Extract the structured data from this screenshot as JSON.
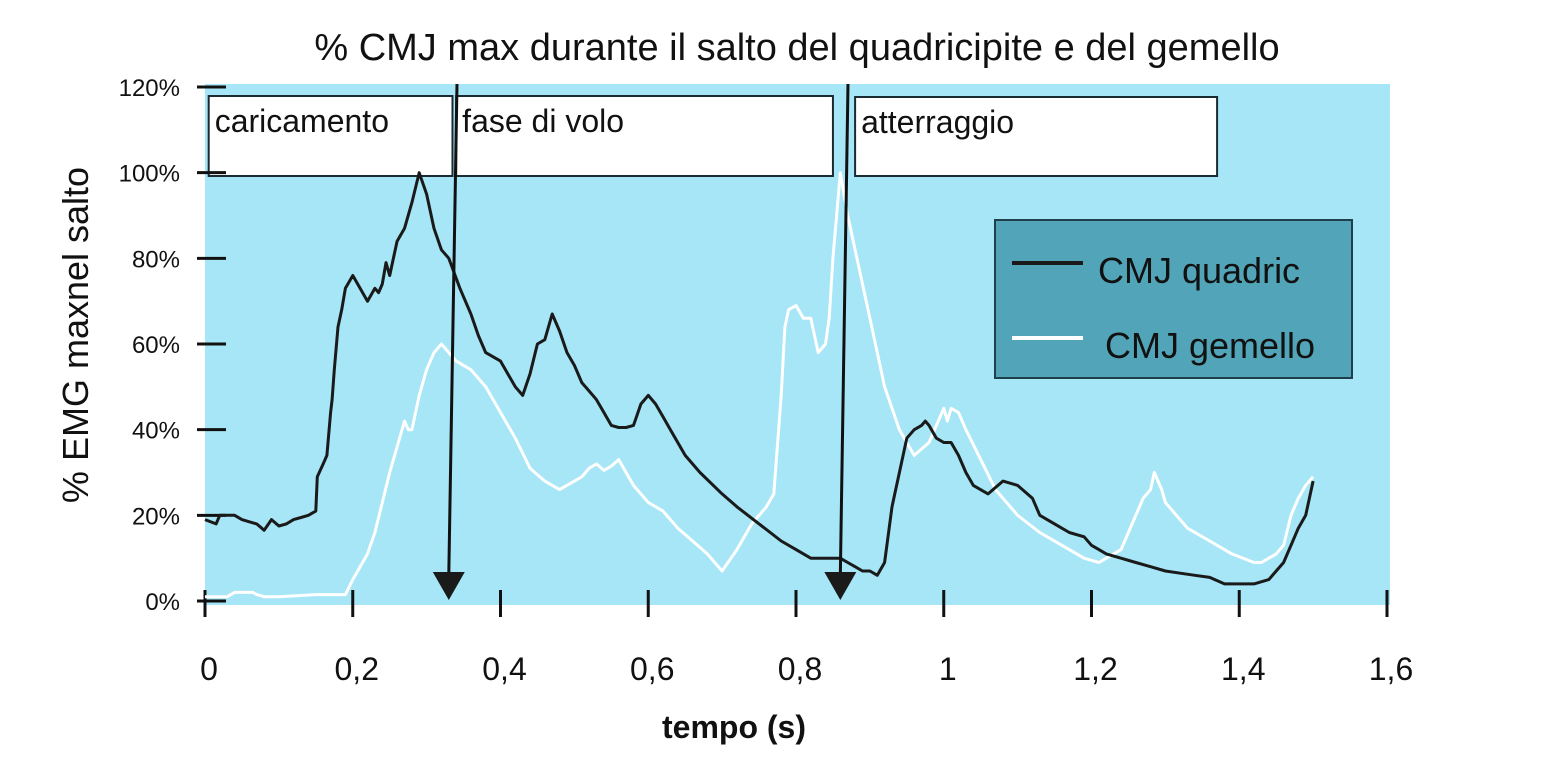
{
  "chart_data": {
    "type": "line",
    "title": "% CMJ max durante il salto del quadricipite e del gemello",
    "xlabel": "tempo (s)",
    "ylabel": "% EMG maxnel salto",
    "xlim": [
      0,
      1.6
    ],
    "ylim": [
      0,
      120
    ],
    "x_ticks": [
      0,
      0.2,
      0.4,
      0.6,
      0.8,
      1.0,
      1.2,
      1.4,
      1.6
    ],
    "x_tick_labels": [
      "0",
      "0,2",
      "0,4",
      "0,6",
      "0,8",
      "1",
      "1,2",
      "1,4",
      "1,6"
    ],
    "y_ticks": [
      0,
      20,
      40,
      60,
      80,
      100,
      120
    ],
    "y_tick_labels": [
      "0%",
      "20%",
      "40%",
      "60%",
      "80%",
      "100%",
      "120%"
    ],
    "grid": false,
    "background_color": "#a6e6f6",
    "legend": {
      "position": "upper right",
      "background_color": "#52a5b8",
      "entries": [
        {
          "label": "CMJ quadric",
          "color": "#1a1a1a"
        },
        {
          "label": "CMJ gemello",
          "color": "#ffffff"
        }
      ]
    },
    "phases": [
      {
        "label": "caricamento",
        "x_start": 0.005,
        "x_end": 0.335
      },
      {
        "label": "fase di volo",
        "x_start": 0.34,
        "x_end": 0.85
      },
      {
        "label": "atterraggio",
        "x_start": 0.88,
        "x_end": 1.37
      }
    ],
    "annotations": [
      {
        "type": "arrow",
        "x": 0.33,
        "label": "phase boundary (take-off)"
      },
      {
        "type": "arrow",
        "x": 0.86,
        "label": "phase boundary (landing)"
      }
    ],
    "series": [
      {
        "name": "CMJ quadric",
        "color": "#1a1a1a",
        "x": [
          0,
          0.015,
          0.02,
          0.04,
          0.05,
          0.06,
          0.07,
          0.08,
          0.09,
          0.1,
          0.11,
          0.12,
          0.13,
          0.14,
          0.15,
          0.152,
          0.16,
          0.165,
          0.17,
          0.172,
          0.175,
          0.18,
          0.185,
          0.19,
          0.2,
          0.21,
          0.22,
          0.23,
          0.235,
          0.24,
          0.245,
          0.25,
          0.255,
          0.26,
          0.27,
          0.28,
          0.29,
          0.3,
          0.31,
          0.32,
          0.33,
          0.345,
          0.36,
          0.37,
          0.38,
          0.4,
          0.41,
          0.42,
          0.43,
          0.44,
          0.45,
          0.46,
          0.47,
          0.48,
          0.49,
          0.5,
          0.51,
          0.52,
          0.53,
          0.54,
          0.55,
          0.56,
          0.57,
          0.58,
          0.59,
          0.6,
          0.61,
          0.62,
          0.63,
          0.65,
          0.67,
          0.7,
          0.72,
          0.75,
          0.78,
          0.8,
          0.82,
          0.84,
          0.86,
          0.87,
          0.88,
          0.89,
          0.9,
          0.91,
          0.92,
          0.93,
          0.935,
          0.94,
          0.95,
          0.96,
          0.97,
          0.975,
          0.98,
          0.99,
          1.0,
          1.01,
          1.02,
          1.03,
          1.04,
          1.06,
          1.08,
          1.1,
          1.12,
          1.13,
          1.15,
          1.17,
          1.19,
          1.2,
          1.21,
          1.22,
          1.24,
          1.26,
          1.28,
          1.3,
          1.32,
          1.34,
          1.36,
          1.38,
          1.4,
          1.42,
          1.44,
          1.45,
          1.46,
          1.47,
          1.48,
          1.49,
          1.5
        ],
        "values": [
          19,
          18,
          20,
          20,
          19,
          18.5,
          18,
          16.5,
          19,
          17.5,
          18,
          19,
          19.5,
          20,
          21,
          29,
          32,
          34,
          44,
          47,
          54,
          64,
          68,
          73,
          76,
          73,
          70,
          73,
          72,
          74,
          79,
          76,
          80,
          84,
          87,
          93,
          100,
          95,
          87,
          82,
          80,
          73,
          67,
          62,
          58,
          56,
          53,
          50,
          48,
          53,
          60,
          61,
          67,
          63,
          58,
          55,
          51,
          49,
          47,
          44,
          41,
          40.5,
          40.5,
          41,
          46,
          48,
          46,
          43,
          40,
          34,
          30,
          25,
          22,
          18,
          14,
          12,
          10,
          10,
          10,
          9,
          8,
          7,
          7,
          6,
          9,
          22,
          26,
          30,
          38,
          40,
          41,
          42,
          41,
          38,
          37,
          37,
          34,
          30,
          27,
          25,
          28,
          27,
          24,
          20,
          18,
          16,
          15,
          13,
          12,
          11,
          10,
          9,
          8,
          7,
          6.5,
          6,
          5.5,
          4,
          4,
          4,
          5,
          7,
          9,
          13,
          17,
          20,
          28
        ]
      },
      {
        "name": "CMJ gemello",
        "color": "#ffffff",
        "x": [
          0,
          0.03,
          0.04,
          0.05,
          0.065,
          0.07,
          0.08,
          0.1,
          0.15,
          0.19,
          0.2,
          0.21,
          0.22,
          0.23,
          0.24,
          0.25,
          0.26,
          0.27,
          0.275,
          0.28,
          0.29,
          0.3,
          0.31,
          0.32,
          0.33,
          0.34,
          0.35,
          0.36,
          0.38,
          0.4,
          0.42,
          0.44,
          0.46,
          0.48,
          0.5,
          0.51,
          0.52,
          0.53,
          0.54,
          0.55,
          0.56,
          0.58,
          0.6,
          0.62,
          0.64,
          0.66,
          0.68,
          0.7,
          0.72,
          0.74,
          0.76,
          0.77,
          0.78,
          0.785,
          0.79,
          0.8,
          0.81,
          0.82,
          0.83,
          0.84,
          0.845,
          0.85,
          0.86,
          0.87,
          0.88,
          0.9,
          0.92,
          0.94,
          0.96,
          0.98,
          0.99,
          1.0,
          1.005,
          1.01,
          1.02,
          1.03,
          1.05,
          1.07,
          1.1,
          1.13,
          1.16,
          1.19,
          1.21,
          1.22,
          1.23,
          1.24,
          1.25,
          1.26,
          1.27,
          1.28,
          1.285,
          1.29,
          1.295,
          1.3,
          1.31,
          1.33,
          1.36,
          1.39,
          1.42,
          1.43,
          1.44,
          1.45,
          1.46,
          1.47,
          1.48,
          1.49,
          1.5
        ],
        "values": [
          1,
          1,
          2,
          2,
          2,
          1.5,
          1,
          1,
          1.5,
          1.5,
          5,
          8,
          11,
          16,
          23,
          30,
          36,
          42,
          40,
          40,
          48,
          54,
          58,
          60,
          58,
          56,
          55,
          54,
          50,
          44,
          38,
          31,
          28,
          26,
          28,
          29,
          31,
          32,
          30.5,
          31.5,
          33,
          27,
          23,
          21,
          17,
          14,
          11,
          7,
          12,
          18,
          22,
          25,
          48,
          64,
          68,
          69,
          66,
          66,
          58,
          60,
          66,
          80,
          100,
          90,
          82,
          66,
          50,
          40,
          34,
          37,
          41,
          45,
          42,
          45,
          44,
          40,
          33,
          26,
          20,
          16,
          13,
          10,
          9,
          10,
          11,
          12,
          16,
          20,
          24,
          26,
          30,
          28,
          26,
          23,
          21,
          17,
          14,
          11,
          9,
          9,
          10,
          11,
          13,
          20,
          24,
          27,
          29
        ]
      }
    ]
  },
  "title": "% CMJ max durante il salto del quadricipite e del gemello",
  "axes": {
    "x_label": "tempo (s)",
    "y_label": "% EMG maxnel salto",
    "x_tick_labels": [
      "0",
      "0,2",
      "0,4",
      "0,6",
      "0,8",
      "1",
      "1,2",
      "1,4",
      "1,6"
    ],
    "y_tick_labels": [
      "0%",
      "20%",
      "40%",
      "60%",
      "80%",
      "100%",
      "120%"
    ]
  },
  "phases": [
    "caricamento",
    "fase di volo",
    "atterraggio"
  ],
  "legend": [
    "CMJ quadric",
    "CMJ gemello"
  ]
}
